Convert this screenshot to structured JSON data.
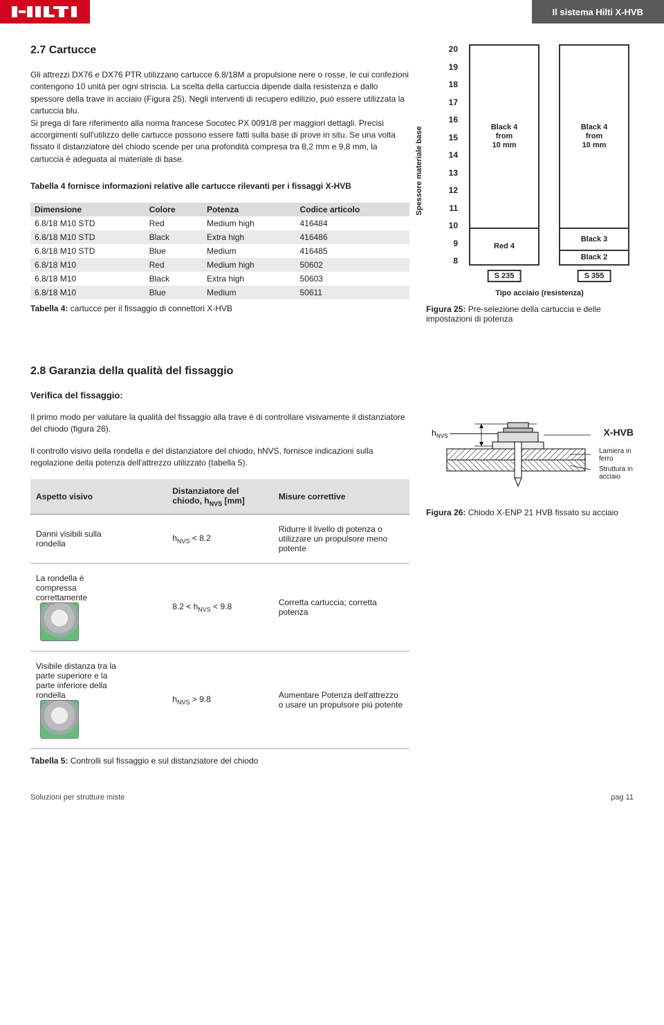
{
  "header": {
    "brand": "HILTI",
    "brand_bg": "#d2051e",
    "title": "Il sistema Hilti X-HVB",
    "title_bg": "#5a5a5a"
  },
  "section27": {
    "heading": "2.7 Cartucce",
    "para1": "Gli attrezzi DX76 e DX76 PTR utilizzano cartucce 6.8/18M a propulsione nere o rosse, le cui confezioni contengono 10 unità per ogni striscia. La scelta della cartuccia dipende dalla resistenza e dallo spessore della trave in acciaio (Figura 25). Negli interventi di recupero edilizio, può essere utilizzata la cartuccia blu.",
    "para2": "Si prega di fare riferimento alla norma francese Socotec PX 0091/8 per maggiori dettagli. Precisi accorgimenti sull'utilizzo delle cartucce possono essere fatti sulla base di prove in situ. Se una volta fissato il distanziatore del chiodo scende per una profondità compresa tra 8,2 mm e 9,8 mm, la cartuccia è adeguata al materiale di base.",
    "para3": "Tabella 4 fornisce informazioni relative alle cartucce rilevanti per i fissaggi X-HVB"
  },
  "table4": {
    "columns": [
      "Dimensione",
      "Colore",
      "Potenza",
      "Codice articolo"
    ],
    "rows": [
      [
        "6.8/18 M10 STD",
        "Red",
        "Medium high",
        "416484"
      ],
      [
        "6.8/18 M10 STD",
        "Black",
        "Extra high",
        "416486"
      ],
      [
        "6.8/18 M10 STD",
        "Blue",
        "Medium",
        "416485"
      ],
      [
        "6.8/18 M10",
        "Red",
        "Medium high",
        "50602"
      ],
      [
        "6.8/18 M10",
        "Black",
        "Extra high",
        "50603"
      ],
      [
        "6.8/18 M10",
        "Blue",
        "Medium",
        "50611"
      ]
    ],
    "caption_bold": "Tabella 4:",
    "caption_rest": " cartucce per il fissaggio di connettori X-HVB"
  },
  "chart25": {
    "y_label": "Spessore materiale base",
    "x_label": "Tipo acciaio (resistenza)",
    "y_min": 8,
    "y_max": 20,
    "y_tick_step": 1,
    "columns": [
      {
        "steel": "S 235",
        "segments": [
          {
            "from": 10,
            "to": 20,
            "label_lines": [
              "Black 4",
              "from",
              "10 mm"
            ]
          },
          {
            "from": 8,
            "to": 10,
            "label_lines": [
              "Red 4"
            ]
          }
        ]
      },
      {
        "steel": "S 355",
        "segments": [
          {
            "from": 10,
            "to": 20,
            "label_lines": [
              "Black 4",
              "from",
              "10 mm"
            ]
          },
          {
            "from": 8.8,
            "to": 10,
            "label_lines": [
              "Black 3"
            ]
          },
          {
            "from": 8,
            "to": 8.8,
            "label_lines": [
              "Black 2"
            ]
          }
        ]
      }
    ],
    "caption_bold": "Figura 25:",
    "caption_rest": " Pre-selezione della cartuccia e delle impostazioni di potenza"
  },
  "section28": {
    "heading": "2.8 Garanzia della qualità del fissaggio",
    "subheading": "Verifica del fissaggio:",
    "para1": "Il primo modo per valutare la qualità del fissaggio alla trave è di controllare visivamente il distanziatore del chiodo (figura 26).",
    "para2": "Il controllo visivo della rondella e del distanziatore del chiodo, hNVS, fornisce indicazioni sulla regolazione della potenza dell'attrezzo utilizzato (tabella 5)."
  },
  "table5": {
    "columns": [
      "Aspetto visivo",
      "Distanziatore del chiodo, hNVS [mm]",
      "Misure correttive"
    ],
    "rows": [
      {
        "aspect": "Danni visibili sulla rondella",
        "range_html": "h<span class='nvs-sub'>NVS</span> < 8.2",
        "measure": "Ridurre il livello di potenza o utilizzare un propulsore meno potente",
        "has_thumb": false
      },
      {
        "aspect": "La rondella è compressa correttamente",
        "range_html": "8.2 < h<span class='nvs-sub'>NVS</span> < 9.8",
        "measure": "Corretta cartuccia; corretta potenza",
        "has_thumb": true
      },
      {
        "aspect": "Visibile distanza tra la parte superiore e la parte inferiore della rondella",
        "range_html": "h<span class='nvs-sub'>NVS</span> > 9.8",
        "measure": "Aumentare Potenza dell'attrezzo o usare un propulsore più potente",
        "has_thumb": true
      }
    ],
    "caption_bold": "Tabella 5:",
    "caption_rest": " Controlli sul fissaggio e sul distanziatore del chiodo"
  },
  "fig26": {
    "hnvs_label": "hNVS",
    "xhvb_label": "X-HVB",
    "layer1": "Lamiera in ferro",
    "layer2": "Struttura in acciaio",
    "caption_bold": "Figura 26:",
    "caption_rest": " Chiodo X-ENP 21 HVB fissato su acciaio"
  },
  "footer": {
    "left": "Soluzioni per strutture miste",
    "right": "pag 11"
  }
}
